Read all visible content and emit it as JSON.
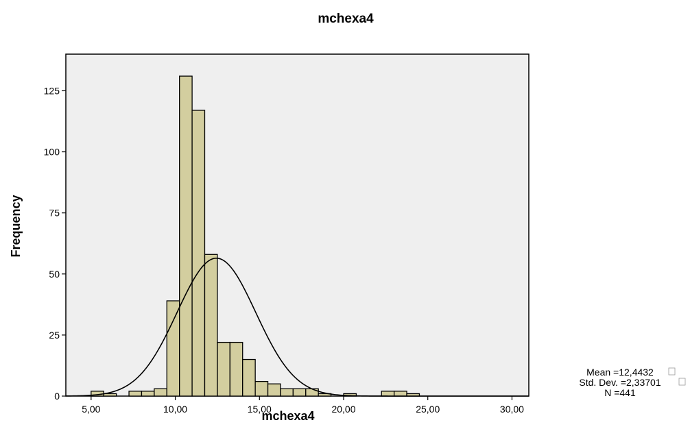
{
  "chart_data": {
    "type": "bar",
    "title": "mchexa4",
    "xlabel": "mchexa4",
    "ylabel": "Frequency",
    "xlim": [
      3.5,
      31.0
    ],
    "ylim": [
      0,
      140
    ],
    "x_ticks": [
      {
        "value": 5,
        "label": "5,00"
      },
      {
        "value": 10,
        "label": "10,00"
      },
      {
        "value": 15,
        "label": "15,00"
      },
      {
        "value": 20,
        "label": "20,00"
      },
      {
        "value": 25,
        "label": "25,00"
      },
      {
        "value": 30,
        "label": "30,00"
      }
    ],
    "y_ticks": [
      {
        "value": 0,
        "label": "0"
      },
      {
        "value": 25,
        "label": "25"
      },
      {
        "value": 50,
        "label": "50"
      },
      {
        "value": 75,
        "label": "75"
      },
      {
        "value": 100,
        "label": "100"
      },
      {
        "value": 125,
        "label": "125"
      }
    ],
    "bin_width": 0.75,
    "bins": [
      {
        "start": 5.0,
        "count": 2
      },
      {
        "start": 5.75,
        "count": 1
      },
      {
        "start": 7.25,
        "count": 2
      },
      {
        "start": 8.0,
        "count": 2
      },
      {
        "start": 8.75,
        "count": 3
      },
      {
        "start": 9.5,
        "count": 39
      },
      {
        "start": 10.25,
        "count": 131
      },
      {
        "start": 11.0,
        "count": 117
      },
      {
        "start": 11.75,
        "count": 58
      },
      {
        "start": 12.5,
        "count": 22
      },
      {
        "start": 13.25,
        "count": 22
      },
      {
        "start": 14.0,
        "count": 15
      },
      {
        "start": 14.75,
        "count": 6
      },
      {
        "start": 15.5,
        "count": 5
      },
      {
        "start": 16.25,
        "count": 3
      },
      {
        "start": 17.0,
        "count": 3
      },
      {
        "start": 17.75,
        "count": 3
      },
      {
        "start": 18.5,
        "count": 1
      },
      {
        "start": 20.0,
        "count": 1
      },
      {
        "start": 22.25,
        "count": 2
      },
      {
        "start": 23.0,
        "count": 2
      },
      {
        "start": 23.75,
        "count": 1
      }
    ],
    "normal_curve": {
      "mean": 12.4432,
      "sd": 2.33701,
      "n": 441
    },
    "grid": false,
    "stats": {
      "mean": "Mean =12,4432",
      "std_dev": "Std. Dev. =2,33701",
      "n": "N =441"
    },
    "colors": {
      "bar_fill": "#d3ce9f",
      "bar_stroke": "#000000",
      "plot_background": "#efefef",
      "curve": "#000000"
    }
  }
}
